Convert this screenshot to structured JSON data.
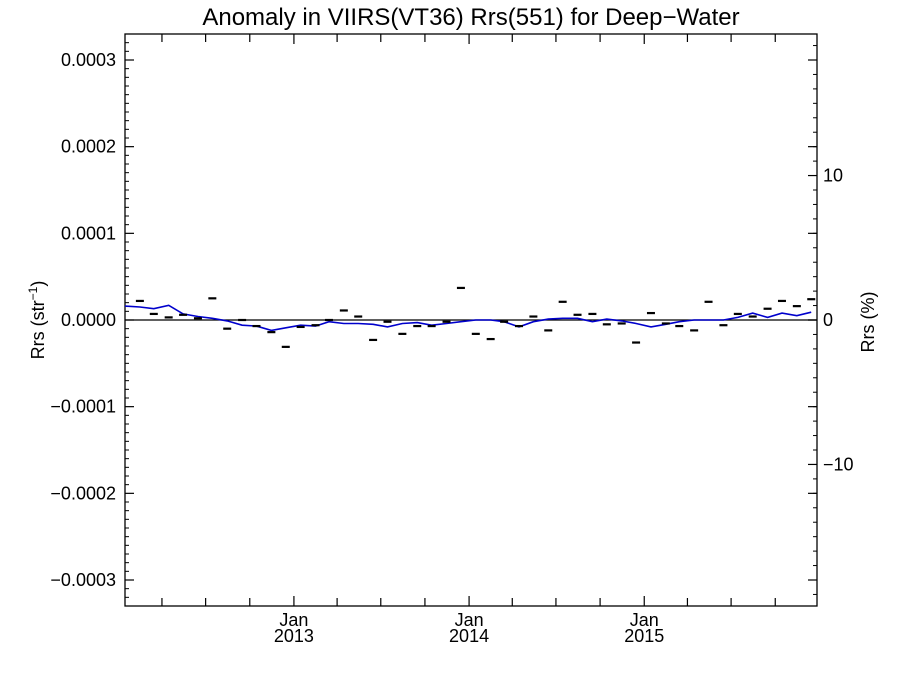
{
  "chart_data": {
    "type": "line",
    "title": "Anomaly in VIIRS(VT36) Rrs(551) for Deep−Water",
    "ylabel": "Rrs (str",
    "ylabel_sup": "−1",
    "ylabel_close": ")",
    "y2label": "Rrs (%)",
    "xlabel": "",
    "grid": false,
    "ylim": [
      -0.00033,
      0.00033
    ],
    "y2lim": [
      -19.8,
      19.8
    ],
    "xlim": [
      "2012-01-15",
      "2015-12-27"
    ],
    "yticks": [
      {
        "value": 0.0003,
        "label": "0.0003"
      },
      {
        "value": 0.0002,
        "label": "0.0002"
      },
      {
        "value": 0.0001,
        "label": "0.0001"
      },
      {
        "value": 0.0,
        "label": "0.0000"
      },
      {
        "value": -0.0001,
        "label": "−0.0001"
      },
      {
        "value": -0.0002,
        "label": "−0.0002"
      },
      {
        "value": -0.0003,
        "label": "−0.0003"
      }
    ],
    "y2ticks": [
      {
        "value": 10,
        "label": "10"
      },
      {
        "value": 0,
        "label": "0"
      },
      {
        "value": -10,
        "label": "−10"
      }
    ],
    "xticks_major": [
      {
        "date": "2013-01-01",
        "label_month": "Jan",
        "label_year": "2013"
      },
      {
        "date": "2014-01-01",
        "label_month": "Jan",
        "label_year": "2014"
      },
      {
        "date": "2015-01-01",
        "label_month": "Jan",
        "label_year": "2015"
      }
    ],
    "reference_line": 0.0,
    "series": [
      {
        "kind": "line",
        "color": "#0000cc",
        "x": [
          "2012-01-15",
          "2012-02-15",
          "2012-03-15",
          "2012-04-15",
          "2012-05-15",
          "2012-06-15",
          "2012-07-15",
          "2012-08-15",
          "2012-09-15",
          "2012-10-15",
          "2012-11-15",
          "2012-12-15",
          "2013-01-15",
          "2013-02-15",
          "2013-03-15",
          "2013-04-15",
          "2013-05-15",
          "2013-06-15",
          "2013-07-15",
          "2013-08-15",
          "2013-09-15",
          "2013-10-15",
          "2013-11-15",
          "2013-12-15",
          "2014-01-15",
          "2014-02-15",
          "2014-03-15",
          "2014-04-15",
          "2014-05-15",
          "2014-06-15",
          "2014-07-15",
          "2014-08-15",
          "2014-09-15",
          "2014-10-15",
          "2014-11-15",
          "2014-12-15",
          "2015-01-15",
          "2015-02-15",
          "2015-03-15",
          "2015-04-15",
          "2015-05-15",
          "2015-06-15",
          "2015-07-15",
          "2015-08-15",
          "2015-09-15",
          "2015-10-15",
          "2015-11-15",
          "2015-12-15"
        ],
        "values": [
          1.6e-05,
          1.5e-05,
          1.3e-05,
          1.7e-05,
          7e-06,
          4e-06,
          2e-06,
          -1e-06,
          -6e-06,
          -7e-06,
          -1.2e-05,
          -9e-06,
          -6e-06,
          -7e-06,
          -2e-06,
          -4e-06,
          -4e-06,
          -5e-06,
          -8e-06,
          -4e-06,
          -3e-06,
          -6e-06,
          -4e-06,
          -2e-06,
          0.0,
          0.0,
          -2e-06,
          -8e-06,
          -2e-06,
          1e-06,
          2e-06,
          2e-06,
          -2e-06,
          1e-06,
          -1e-06,
          -4e-06,
          -8e-06,
          -5e-06,
          -2e-06,
          0.0,
          0.0,
          0.0,
          3e-06,
          8e-06,
          3e-06,
          8e-06,
          5e-06,
          9e-06
        ]
      },
      {
        "kind": "dash-marker",
        "color": "#000000",
        "x": [
          "2012-02-15",
          "2012-03-15",
          "2012-04-15",
          "2012-05-15",
          "2012-06-15",
          "2012-07-15",
          "2012-08-15",
          "2012-09-15",
          "2012-10-15",
          "2012-11-15",
          "2012-12-15",
          "2013-01-15",
          "2013-02-15",
          "2013-03-15",
          "2013-04-15",
          "2013-05-15",
          "2013-06-15",
          "2013-07-15",
          "2013-08-15",
          "2013-09-15",
          "2013-10-15",
          "2013-11-15",
          "2013-12-15",
          "2014-01-15",
          "2014-02-15",
          "2014-03-15",
          "2014-04-15",
          "2014-05-15",
          "2014-06-15",
          "2014-07-15",
          "2014-08-15",
          "2014-09-15",
          "2014-10-15",
          "2014-11-15",
          "2014-12-15",
          "2015-01-15",
          "2015-02-15",
          "2015-03-15",
          "2015-04-15",
          "2015-05-15",
          "2015-06-15",
          "2015-07-15",
          "2015-08-15",
          "2015-09-15",
          "2015-10-15",
          "2015-11-15",
          "2015-12-15"
        ],
        "values": [
          2.2e-05,
          7e-06,
          3e-06,
          6e-06,
          2e-06,
          2.5e-05,
          -1e-05,
          0.0,
          -7e-06,
          -1.4e-05,
          -3.1e-05,
          -8e-06,
          -6e-06,
          0.0,
          1.1e-05,
          4e-06,
          -2.3e-05,
          -2e-06,
          -1.6e-05,
          -7e-06,
          -7e-06,
          -2e-06,
          3.7e-05,
          -1.6e-05,
          -2.2e-05,
          -2e-06,
          -7e-06,
          4e-06,
          -1.2e-05,
          2.1e-05,
          6e-06,
          7e-06,
          -5e-06,
          -4e-06,
          -2.6e-05,
          8e-06,
          -4e-06,
          -7e-06,
          -1.2e-05,
          2.1e-05,
          -6e-06,
          7e-06,
          4e-06,
          1.3e-05,
          2.2e-05,
          1.6e-05,
          2.4e-05
        ]
      }
    ]
  }
}
